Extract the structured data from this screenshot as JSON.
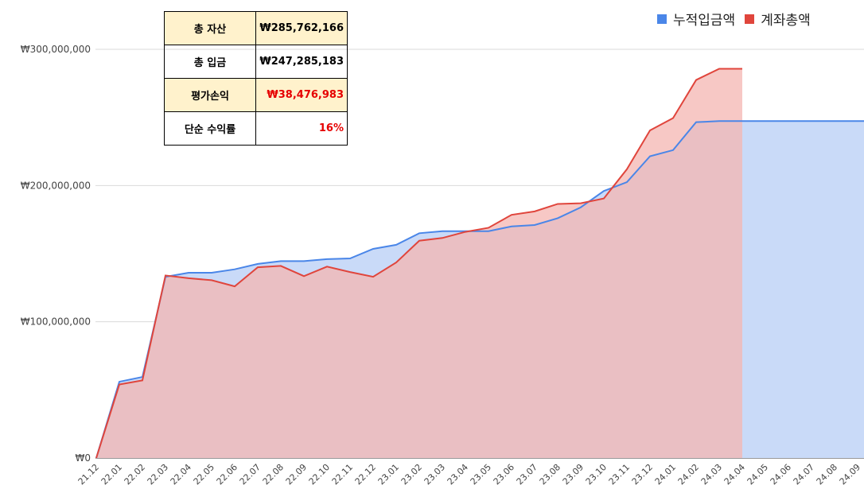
{
  "summary": {
    "rows": [
      {
        "label": "총 자산",
        "value": "₩285,762,166",
        "highlight": true,
        "value_color": "#000000"
      },
      {
        "label": "총 입금",
        "value": "₩247,285,183",
        "highlight": false,
        "value_color": "#000000"
      },
      {
        "label": "평가손익",
        "value": "₩38,476,983",
        "highlight": true,
        "value_color": "#e60000"
      },
      {
        "label": "단순 수익률",
        "value": "16%",
        "highlight": false,
        "value_color": "#e60000"
      }
    ]
  },
  "chart_data": {
    "type": "area",
    "title": "",
    "xlabel": "",
    "ylabel": "",
    "ylim": [
      0,
      300000000
    ],
    "y_ticks": [
      0,
      100000000,
      200000000,
      300000000
    ],
    "y_tick_labels": [
      "₩0",
      "₩100,000,000",
      "₩200,000,000",
      "₩300,000,000"
    ],
    "grid": true,
    "legend_position": "top-right",
    "categories": [
      "21.12",
      "22.01",
      "22.02",
      "22.03",
      "22.04",
      "22.05",
      "22.06",
      "22.07",
      "22.08",
      "22.09",
      "22.10",
      "22.11",
      "22.12",
      "23.01",
      "23.02",
      "23.03",
      "23.04",
      "23.05",
      "23.06",
      "23.07",
      "23.08",
      "23.09",
      "23.10",
      "23.11",
      "23.12",
      "24.01",
      "24.02",
      "24.03",
      "24.04",
      "24.05",
      "24.06",
      "24.07",
      "24.08",
      "24.09"
    ],
    "series": [
      {
        "name": "누적입금액",
        "color": "#4a86e8",
        "fill": "#c9daf8",
        "values": [
          0,
          56000000,
          59500000,
          133000000,
          136000000,
          136000000,
          138500000,
          142500000,
          144500000,
          144500000,
          146000000,
          146500000,
          153500000,
          156500000,
          165000000,
          166500000,
          166500000,
          166500000,
          170000000,
          171000000,
          176000000,
          184000000,
          196000000,
          202500000,
          221500000,
          226000000,
          246500000,
          247300000,
          247300000,
          247300000,
          247300000,
          247300000,
          247300000,
          247300000
        ]
      },
      {
        "name": "계좌총액",
        "color": "#e0453c",
        "fill": "#f4b6b2",
        "values": [
          0,
          54000000,
          57000000,
          134000000,
          132000000,
          130500000,
          126000000,
          140000000,
          141000000,
          133500000,
          140500000,
          136500000,
          133000000,
          143500000,
          159500000,
          161500000,
          166000000,
          169000000,
          178500000,
          181000000,
          186500000,
          187000000,
          190500000,
          212000000,
          240500000,
          249500000,
          277500000,
          285700000,
          285700000,
          null,
          null,
          null,
          null,
          null
        ]
      }
    ]
  }
}
